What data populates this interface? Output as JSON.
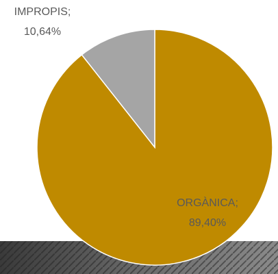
{
  "chart_data": {
    "type": "pie",
    "categories": [
      "ORGÀNICA",
      "IMPROPIS"
    ],
    "separator": ";",
    "values": [
      89.4,
      10.64
    ],
    "value_labels": [
      "89,40%",
      "10,64%"
    ],
    "colors": [
      "#bf8a00",
      "#a5a5a5"
    ]
  }
}
